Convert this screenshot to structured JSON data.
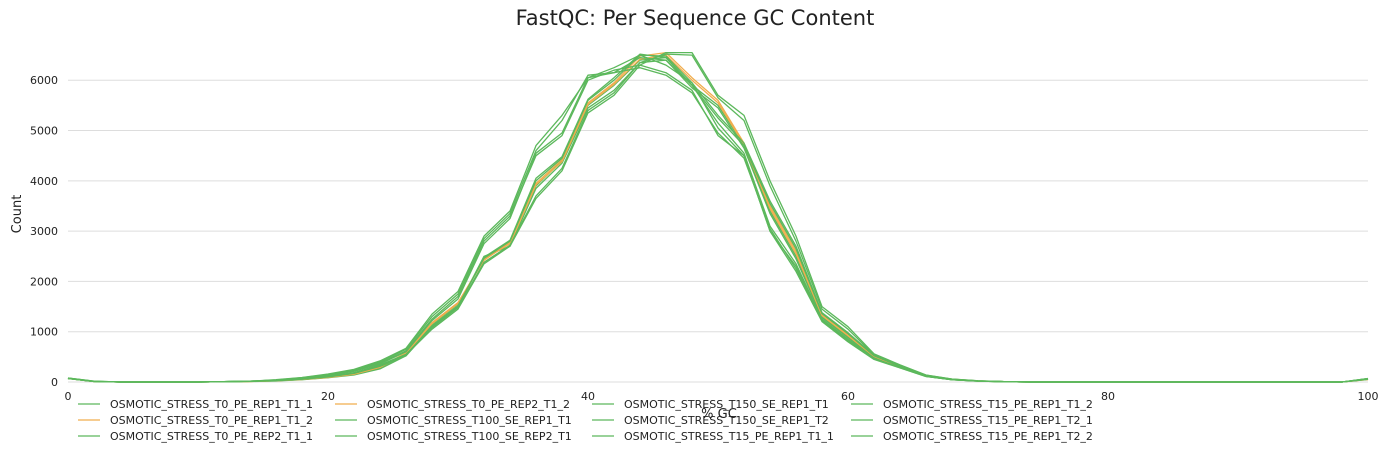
{
  "chart_data": {
    "type": "line",
    "title": "FastQC: Per Sequence GC Content",
    "xlabel": "% GC",
    "ylabel": "Count",
    "xlim": [
      0,
      100
    ],
    "ylim": [
      0,
      6800
    ],
    "xticks": [
      0,
      20,
      40,
      60,
      80,
      100
    ],
    "yticks": [
      0,
      1000,
      2000,
      3000,
      4000,
      5000,
      6000
    ],
    "grid": "horizontal",
    "legend_position": "bottom",
    "colors": {
      "green": "#5cb85c",
      "orange": "#f0ad4e",
      "grid": "#dddddd"
    },
    "x": [
      0,
      2,
      4,
      6,
      8,
      10,
      12,
      14,
      16,
      18,
      20,
      22,
      24,
      26,
      28,
      30,
      32,
      34,
      36,
      38,
      40,
      42,
      44,
      46,
      48,
      50,
      52,
      54,
      56,
      58,
      60,
      62,
      64,
      66,
      68,
      70,
      72,
      74,
      76,
      78,
      80,
      82,
      84,
      86,
      88,
      90,
      92,
      94,
      96,
      98,
      100
    ],
    "series": [
      {
        "name": "OSMOTIC_STRESS_T0_PE_REP1_T1_1",
        "color": "#5cb85c",
        "values": [
          70,
          10,
          0,
          0,
          0,
          0,
          5,
          10,
          25,
          50,
          90,
          150,
          280,
          560,
          1150,
          1550,
          2450,
          2800,
          3900,
          4400,
          5500,
          5900,
          6400,
          6450,
          5900,
          5500,
          4700,
          3400,
          2500,
          1300,
          900,
          500,
          300,
          120,
          50,
          20,
          5,
          0,
          0,
          0,
          0,
          0,
          0,
          0,
          0,
          0,
          0,
          0,
          0,
          0,
          50
        ]
      },
      {
        "name": "OSMOTIC_STRESS_T0_PE_REP1_T1_2",
        "color": "#f0ad4e",
        "values": [
          70,
          10,
          0,
          0,
          0,
          0,
          5,
          10,
          25,
          55,
          95,
          160,
          300,
          580,
          1180,
          1580,
          2420,
          2780,
          3950,
          4420,
          5550,
          5950,
          6480,
          6550,
          6050,
          5600,
          4750,
          3500,
          2600,
          1350,
          950,
          520,
          310,
          125,
          55,
          22,
          5,
          0,
          0,
          0,
          0,
          0,
          0,
          0,
          0,
          0,
          0,
          0,
          0,
          0,
          50
        ]
      },
      {
        "name": "OSMOTIC_STRESS_T0_PE_REP2_T1_1",
        "color": "#5cb85c",
        "values": [
          70,
          10,
          0,
          0,
          0,
          0,
          5,
          10,
          20,
          45,
          85,
          140,
          260,
          520,
          1100,
          1500,
          2500,
          2700,
          3850,
          4350,
          5450,
          5800,
          6350,
          6400,
          5850,
          5450,
          4650,
          3350,
          2450,
          1280,
          880,
          480,
          290,
          115,
          45,
          18,
          5,
          0,
          0,
          0,
          0,
          0,
          0,
          0,
          0,
          0,
          0,
          0,
          0,
          0,
          60
        ]
      },
      {
        "name": "OSMOTIC_STRESS_T0_PE_REP2_T1_2",
        "color": "#f0ad4e",
        "values": [
          70,
          10,
          0,
          0,
          0,
          0,
          5,
          10,
          25,
          50,
          90,
          155,
          290,
          570,
          1160,
          1560,
          2440,
          2750,
          3920,
          4380,
          5520,
          5920,
          6420,
          6500,
          6000,
          5550,
          4720,
          3450,
          2550,
          1320,
          920,
          510,
          300,
          120,
          50,
          20,
          5,
          0,
          0,
          0,
          0,
          0,
          0,
          0,
          0,
          0,
          0,
          0,
          0,
          0,
          50
        ]
      },
      {
        "name": "OSMOTIC_STRESS_T100_SE_REP1_T1",
        "color": "#5cb85c",
        "values": [
          80,
          15,
          0,
          0,
          0,
          0,
          5,
          15,
          40,
          80,
          140,
          220,
          380,
          620,
          1250,
          1700,
          2800,
          3300,
          4500,
          4900,
          6000,
          6200,
          6300,
          6150,
          5800,
          4900,
          4500,
          3000,
          2200,
          1200,
          800,
          450,
          280,
          110,
          45,
          18,
          5,
          0,
          0,
          0,
          0,
          0,
          0,
          0,
          0,
          0,
          0,
          0,
          0,
          0,
          70
        ]
      },
      {
        "name": "OSMOTIC_STRESS_T100_SE_REP2_T1",
        "color": "#5cb85c",
        "values": [
          80,
          15,
          0,
          0,
          0,
          0,
          5,
          15,
          35,
          70,
          130,
          210,
          360,
          600,
          1220,
          1650,
          2750,
          3250,
          4550,
          4950,
          6050,
          6150,
          6250,
          6100,
          5750,
          4950,
          4450,
          3050,
          2250,
          1220,
          820,
          460,
          285,
          110,
          45,
          18,
          5,
          0,
          0,
          0,
          0,
          0,
          0,
          0,
          0,
          0,
          0,
          0,
          0,
          0,
          70
        ]
      },
      {
        "name": "OSMOTIC_STRESS_T150_SE_REP1_T1",
        "color": "#5cb85c",
        "values": [
          75,
          12,
          0,
          0,
          0,
          0,
          5,
          15,
          40,
          85,
          150,
          240,
          400,
          650,
          1300,
          1750,
          2850,
          3350,
          4600,
          5200,
          6100,
          6150,
          6450,
          6400,
          5900,
          5150,
          4550,
          3100,
          2350,
          1250,
          850,
          470,
          290,
          115,
          48,
          19,
          5,
          0,
          0,
          0,
          0,
          0,
          0,
          0,
          0,
          0,
          0,
          0,
          0,
          0,
          65
        ]
      },
      {
        "name": "OSMOTIC_STRESS_T150_SE_REP1_T2",
        "color": "#5cb85c",
        "values": [
          75,
          12,
          0,
          0,
          0,
          0,
          5,
          15,
          45,
          90,
          160,
          250,
          420,
          670,
          1350,
          1800,
          2900,
          3400,
          4700,
          5300,
          6050,
          6250,
          6500,
          6300,
          5950,
          5050,
          4500,
          3000,
          2300,
          1230,
          830,
          460,
          285,
          112,
          46,
          18,
          5,
          0,
          0,
          0,
          0,
          0,
          0,
          0,
          0,
          0,
          0,
          0,
          0,
          0,
          65
        ]
      },
      {
        "name": "OSMOTIC_STRESS_T15_PE_REP1_T1_1",
        "color": "#5cb85c",
        "values": [
          70,
          10,
          0,
          0,
          0,
          0,
          5,
          15,
          30,
          60,
          110,
          180,
          330,
          540,
          1050,
          1450,
          2350,
          2700,
          3650,
          4200,
          5350,
          5700,
          6300,
          6550,
          6550,
          5700,
          5300,
          4000,
          2900,
          1500,
          1100,
          560,
          340,
          140,
          60,
          24,
          6,
          0,
          0,
          0,
          0,
          0,
          0,
          0,
          0,
          0,
          0,
          0,
          0,
          0,
          55
        ]
      },
      {
        "name": "OSMOTIC_STRESS_T15_PE_REP1_T1_2",
        "color": "#5cb85c",
        "values": [
          70,
          10,
          0,
          0,
          0,
          0,
          5,
          15,
          30,
          65,
          115,
          185,
          340,
          550,
          1080,
          1480,
          2380,
          2720,
          3700,
          4250,
          5400,
          5750,
          6350,
          6520,
          6500,
          5650,
          5200,
          3900,
          2800,
          1450,
          1050,
          540,
          330,
          135,
          58,
          23,
          6,
          0,
          0,
          0,
          0,
          0,
          0,
          0,
          0,
          0,
          0,
          0,
          0,
          0,
          55
        ]
      },
      {
        "name": "OSMOTIC_STRESS_T15_PE_REP1_T2_1",
        "color": "#5cb85c",
        "values": [
          70,
          10,
          0,
          0,
          0,
          0,
          5,
          12,
          28,
          58,
          105,
          175,
          320,
          530,
          1120,
          1520,
          2460,
          2800,
          4000,
          4450,
          5600,
          6000,
          6500,
          6480,
          5950,
          5300,
          4750,
          3600,
          2700,
          1380,
          980,
          530,
          315,
          128,
          54,
          21,
          5,
          0,
          0,
          0,
          0,
          0,
          0,
          0,
          0,
          0,
          0,
          0,
          0,
          0,
          55
        ]
      },
      {
        "name": "OSMOTIC_STRESS_T15_PE_REP1_T2_2",
        "color": "#5cb85c",
        "values": [
          70,
          10,
          0,
          0,
          0,
          0,
          5,
          12,
          28,
          55,
          100,
          170,
          310,
          520,
          1100,
          1500,
          2480,
          2820,
          4050,
          4480,
          5620,
          6050,
          6520,
          6450,
          5900,
          5250,
          4700,
          3550,
          2650,
          1360,
          960,
          520,
          310,
          125,
          52,
          20,
          5,
          0,
          0,
          0,
          0,
          0,
          0,
          0,
          0,
          0,
          0,
          0,
          0,
          0,
          55
        ]
      }
    ]
  }
}
